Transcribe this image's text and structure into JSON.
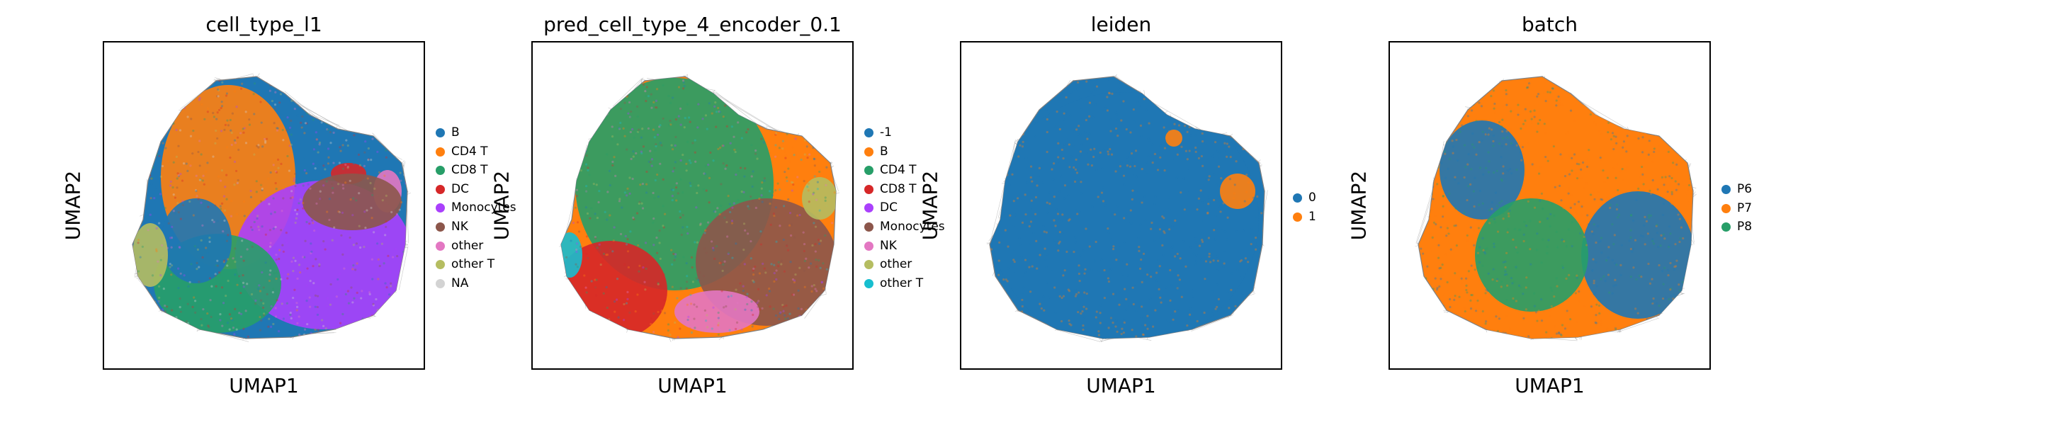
{
  "chart_data": [
    {
      "type": "scatter",
      "title": "cell_type_l1",
      "xlabel": "UMAP1",
      "ylabel": "UMAP2",
      "legend_position": "right",
      "legend": [
        {
          "label": "B",
          "color": "#1f77b4"
        },
        {
          "label": "CD4 T",
          "color": "#ff7f0e"
        },
        {
          "label": "CD8 T",
          "color": "#279e68"
        },
        {
          "label": "DC",
          "color": "#d62728"
        },
        {
          "label": "Monocytes",
          "color": "#aa40fc"
        },
        {
          "label": "NK",
          "color": "#8c564b"
        },
        {
          "label": "other",
          "color": "#e377c2"
        },
        {
          "label": "other T",
          "color": "#b5bd61"
        },
        {
          "label": "NA",
          "color": "#d3d3d3"
        }
      ]
    },
    {
      "type": "scatter",
      "title": "pred_cell_type_4_encoder_0.1",
      "xlabel": "UMAP1",
      "ylabel": "UMAP2",
      "legend_position": "right",
      "legend": [
        {
          "label": "-1",
          "color": "#1f77b4"
        },
        {
          "label": "B",
          "color": "#ff7f0e"
        },
        {
          "label": "CD4 T",
          "color": "#279e68"
        },
        {
          "label": "CD8 T",
          "color": "#d62728"
        },
        {
          "label": "DC",
          "color": "#aa40fc"
        },
        {
          "label": "Monocytes",
          "color": "#8c564b"
        },
        {
          "label": "NK",
          "color": "#e377c2"
        },
        {
          "label": "other",
          "color": "#b5bd61"
        },
        {
          "label": "other T",
          "color": "#17becf"
        }
      ]
    },
    {
      "type": "scatter",
      "title": "leiden",
      "xlabel": "UMAP1",
      "ylabel": "UMAP2",
      "legend_position": "right",
      "legend": [
        {
          "label": "0",
          "color": "#1f77b4"
        },
        {
          "label": "1",
          "color": "#ff7f0e"
        }
      ]
    },
    {
      "type": "scatter",
      "title": "batch",
      "xlabel": "UMAP1",
      "ylabel": "UMAP2",
      "legend_position": "right",
      "legend": [
        {
          "label": "P6",
          "color": "#1f77b4"
        },
        {
          "label": "P7",
          "color": "#ff7f0e"
        },
        {
          "label": "P8",
          "color": "#279e68"
        }
      ]
    }
  ]
}
